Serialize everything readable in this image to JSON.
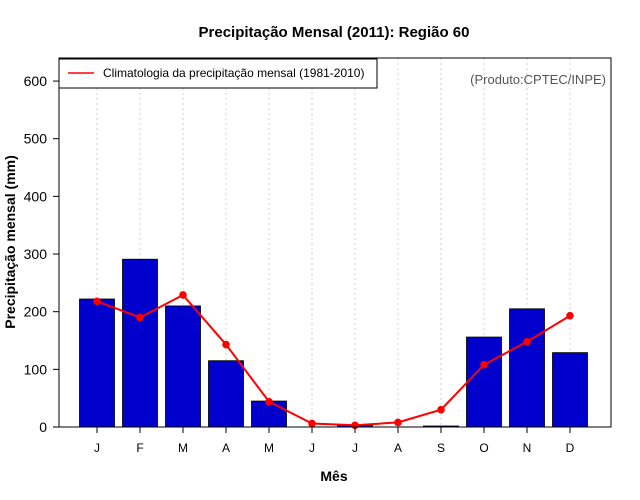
{
  "chart_data": {
    "type": "bar",
    "title": "Precipitação Mensal (2011): Região 60",
    "xlabel": "Mês",
    "ylabel": "Precipitação mensal (mm)",
    "ylim": [
      0,
      640
    ],
    "yticks": [
      0,
      100,
      200,
      300,
      400,
      500,
      600
    ],
    "categories": [
      "J",
      "F",
      "M",
      "A",
      "M",
      "J",
      "J",
      "A",
      "S",
      "O",
      "N",
      "D"
    ],
    "grid": "vertical dotted",
    "series": [
      {
        "name": "Precipitação mensal (2011)",
        "type": "bar",
        "color": "#0000CD",
        "values": [
          222,
          291,
          210,
          115,
          45,
          0,
          4,
          0,
          1,
          156,
          205,
          129
        ]
      },
      {
        "name": "Climatologia da precipitação mensal (1981-2010)",
        "type": "line",
        "color": "#FF0000",
        "values": [
          218,
          190,
          229,
          143,
          44,
          6,
          3,
          8,
          30,
          108,
          148,
          193
        ]
      }
    ],
    "legend": {
      "position": "top-left",
      "entries": [
        "Climatologia da precipitação mensal (1981-2010)"
      ]
    },
    "annotation": "(Produto:CPTEC/INPE)"
  }
}
